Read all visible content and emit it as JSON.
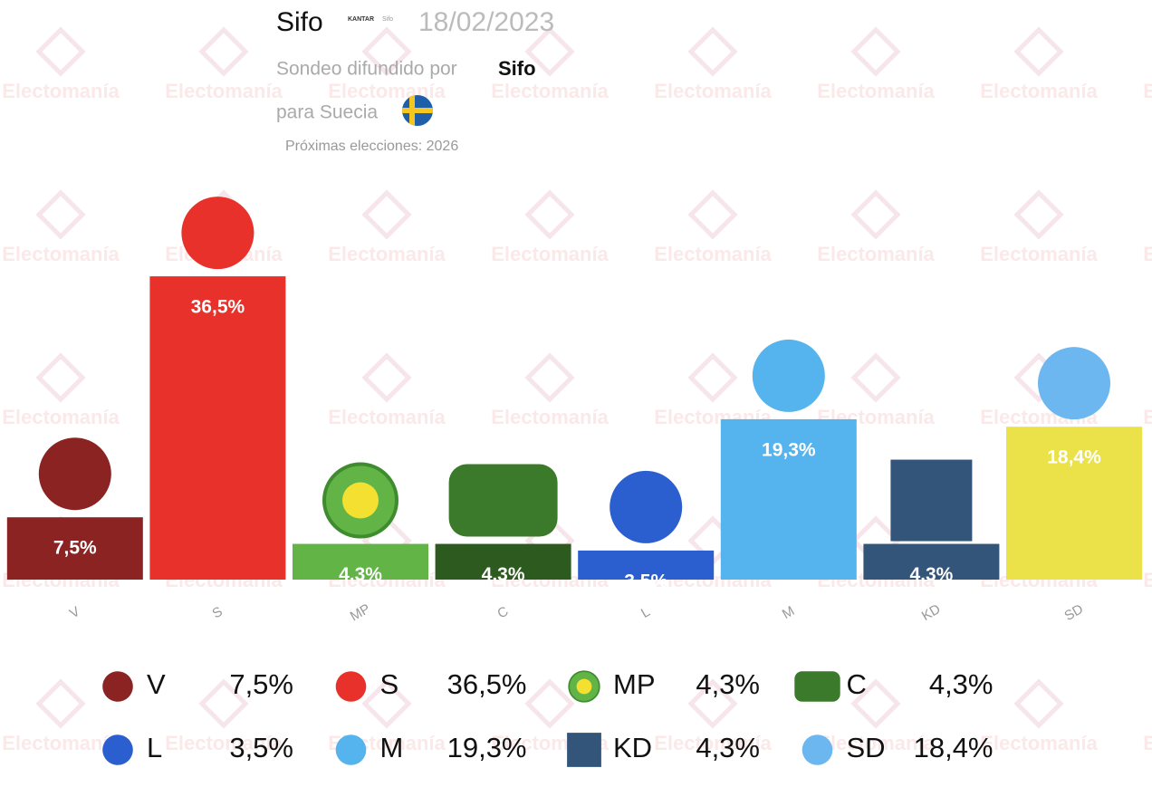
{
  "header": {
    "pollster": "Sifo",
    "logo_brand": "KANTAR",
    "logo_name": "Sifo",
    "date": "18/02/2023",
    "spread_by_label": "Sondeo difundido por",
    "spread_by": "Sifo",
    "country": "para Suecia",
    "next_election": "Próximas elecciones: 2026"
  },
  "watermark": "Electomanía",
  "chart_data": {
    "type": "bar",
    "categories": [
      "V",
      "S",
      "MP",
      "C",
      "L",
      "M",
      "KD",
      "SD"
    ],
    "values": [
      7.5,
      36.5,
      4.3,
      4.3,
      3.5,
      19.3,
      4.3,
      18.4
    ],
    "value_labels": [
      "7,5%",
      "36,5%",
      "4,3%",
      "4,3%",
      "3,5%",
      "19,3%",
      "4,3%",
      "18,4%"
    ],
    "colors": [
      "#8b2323",
      "#e8312a",
      "#62b447",
      "#2d5a1e",
      "#2b5fcf",
      "#55b3ee",
      "#34557a",
      "#ebe24a"
    ],
    "ylim": [
      0,
      40
    ]
  }
}
